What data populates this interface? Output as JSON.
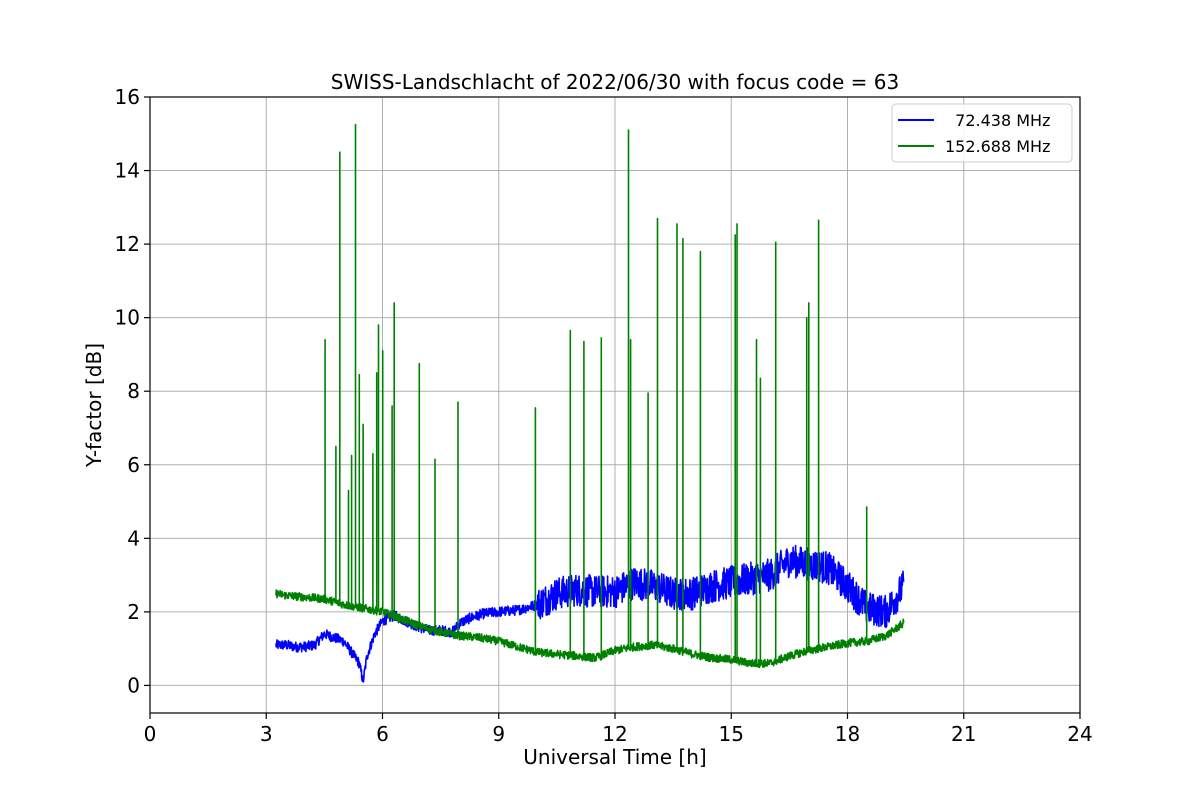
{
  "chart_data": {
    "type": "line",
    "title": "SWISS-Landschlacht of 2022/06/30 with focus code = 63",
    "xlabel": "Universal Time [h]",
    "ylabel": "Y-factor [dB]",
    "xlim": [
      0,
      24
    ],
    "ylim": [
      -0.75,
      16
    ],
    "xticks": [
      0,
      3,
      6,
      9,
      12,
      15,
      18,
      21,
      24
    ],
    "yticks": [
      0,
      2,
      4,
      6,
      8,
      10,
      12,
      14,
      16
    ],
    "grid": true,
    "legend_position": "top-right",
    "series": [
      {
        "name": "  72.438 MHz",
        "color": "#0000ff",
        "x": [
          3.25,
          3.5,
          3.75,
          4.0,
          4.25,
          4.5,
          4.75,
          5.0,
          5.2,
          5.4,
          5.5,
          5.6,
          5.8,
          6.0,
          6.3,
          6.6,
          6.9,
          7.2,
          7.5,
          7.8,
          8.0,
          8.3,
          8.6,
          9.0,
          9.5,
          10.0,
          10.5,
          11.0,
          11.5,
          12.0,
          12.5,
          13.0,
          13.5,
          14.0,
          14.5,
          15.0,
          15.5,
          16.0,
          16.5,
          17.0,
          17.5,
          18.0,
          18.5,
          19.0,
          19.45
        ],
        "y": [
          1.1,
          1.1,
          1.05,
          1.05,
          1.1,
          1.4,
          1.3,
          1.2,
          0.9,
          0.6,
          0.1,
          0.8,
          1.4,
          1.75,
          1.9,
          1.75,
          1.6,
          1.5,
          1.5,
          1.45,
          1.7,
          1.85,
          1.95,
          2.0,
          2.05,
          2.2,
          2.5,
          2.6,
          2.55,
          2.55,
          2.8,
          2.7,
          2.5,
          2.5,
          2.7,
          2.8,
          2.9,
          3.0,
          3.4,
          3.3,
          3.2,
          2.7,
          2.1,
          2.0,
          2.7
        ]
      },
      {
        "name": "152.688 MHz",
        "color": "#008000",
        "x": [
          3.25,
          3.5,
          4.0,
          4.5,
          5.0,
          5.5,
          6.0,
          6.5,
          7.0,
          7.5,
          8.0,
          8.5,
          9.0,
          9.5,
          10.0,
          10.5,
          11.0,
          11.5,
          12.0,
          12.5,
          13.0,
          13.5,
          14.0,
          14.5,
          15.0,
          15.5,
          16.0,
          16.5,
          17.0,
          17.5,
          18.0,
          18.5,
          19.0,
          19.45
        ],
        "y": [
          2.5,
          2.45,
          2.4,
          2.35,
          2.2,
          2.1,
          2.0,
          1.8,
          1.6,
          1.45,
          1.35,
          1.3,
          1.2,
          1.05,
          0.9,
          0.85,
          0.8,
          0.75,
          0.95,
          1.05,
          1.1,
          1.0,
          0.85,
          0.75,
          0.7,
          0.6,
          0.6,
          0.8,
          0.95,
          1.05,
          1.15,
          1.2,
          1.35,
          1.7
        ],
        "spikes": [
          [
            4.52,
            9.4
          ],
          [
            4.8,
            6.5
          ],
          [
            4.9,
            14.5
          ],
          [
            5.12,
            5.3
          ],
          [
            5.2,
            6.25
          ],
          [
            5.3,
            15.25
          ],
          [
            5.4,
            8.45
          ],
          [
            5.5,
            7.1
          ],
          [
            5.75,
            6.3
          ],
          [
            5.85,
            8.5
          ],
          [
            5.9,
            9.8
          ],
          [
            6.0,
            9.1
          ],
          [
            6.25,
            7.6
          ],
          [
            6.3,
            10.4
          ],
          [
            6.95,
            8.75
          ],
          [
            7.35,
            6.15
          ],
          [
            7.95,
            7.7
          ],
          [
            9.95,
            7.55
          ],
          [
            10.85,
            9.65
          ],
          [
            11.2,
            9.35
          ],
          [
            11.65,
            9.45
          ],
          [
            12.35,
            15.1
          ],
          [
            12.4,
            9.4
          ],
          [
            12.85,
            7.95
          ],
          [
            13.1,
            12.7
          ],
          [
            13.6,
            12.55
          ],
          [
            13.75,
            12.15
          ],
          [
            14.2,
            11.8
          ],
          [
            15.1,
            12.25
          ],
          [
            15.15,
            12.55
          ],
          [
            15.65,
            9.4
          ],
          [
            15.75,
            8.35
          ],
          [
            16.15,
            12.05
          ],
          [
            16.95,
            10.0
          ],
          [
            17.0,
            10.4
          ],
          [
            17.25,
            12.65
          ],
          [
            18.5,
            4.85
          ]
        ]
      }
    ]
  }
}
